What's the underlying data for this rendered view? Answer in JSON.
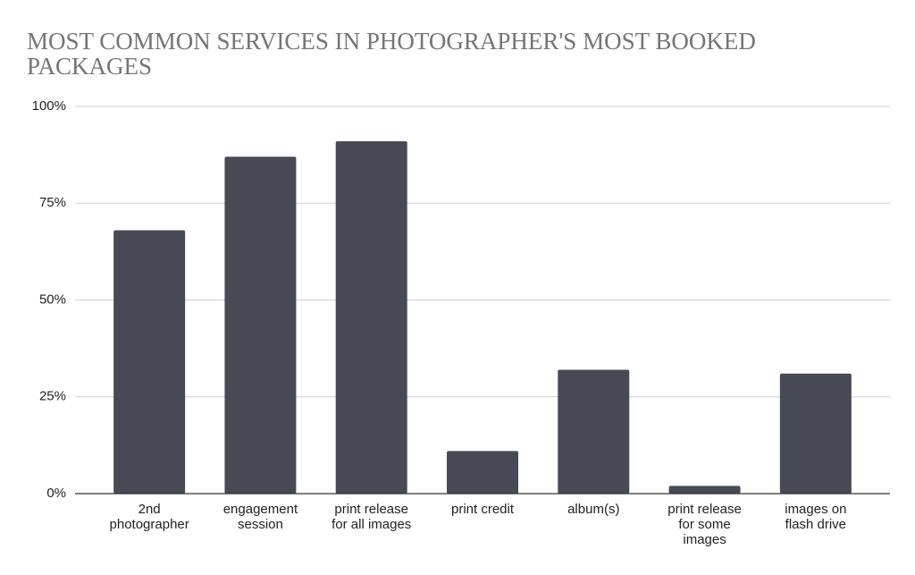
{
  "chart_data": {
    "type": "bar",
    "title": "MOST COMMON SERVICES IN PHOTOGRAPHER'S MOST BOOKED PACKAGES",
    "categories": [
      "2nd photographer",
      "engagement session",
      "print release for all images",
      "print credit",
      "album(s)",
      "print release for some images",
      "images on flash drive"
    ],
    "values": [
      68,
      87,
      91,
      11,
      32,
      2,
      31
    ],
    "color": "#474a54",
    "ylim": [
      0,
      100
    ],
    "yticks": [
      {
        "value": 0,
        "label": "0%"
      },
      {
        "value": 25,
        "label": "25%"
      },
      {
        "value": 50,
        "label": "50%"
      },
      {
        "value": 75,
        "label": "75%"
      },
      {
        "value": 100,
        "label": "100%"
      }
    ],
    "grid": true
  }
}
